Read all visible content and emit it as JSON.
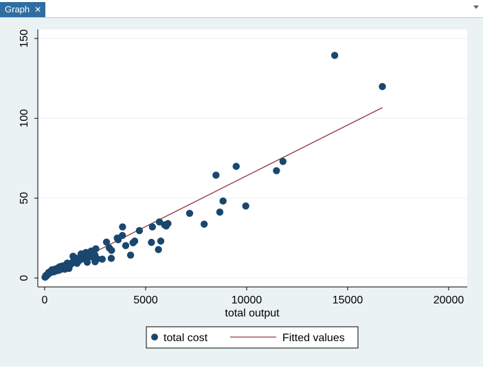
{
  "tab": {
    "label": "Graph",
    "close": "✕"
  },
  "chart_data": {
    "type": "scatter",
    "xlabel": "total output",
    "ylabel": "",
    "xlim": [
      0,
      20000
    ],
    "ylim": [
      0,
      150
    ],
    "xticks": [
      0,
      5000,
      10000,
      15000,
      20000
    ],
    "yticks": [
      0,
      50,
      100,
      150
    ],
    "grid": true,
    "legend_position": "bottom",
    "colors": {
      "points": "#1a476f",
      "fit": "#90353b",
      "plot_bg": "#ffffff",
      "outer_bg": "#eaf2f3",
      "grid": "#eaf2f3"
    },
    "series": [
      {
        "name": "total cost",
        "kind": "scatter",
        "points": [
          [
            14359,
            139.4
          ],
          [
            16719,
            119.9
          ],
          [
            11796,
            73.0
          ],
          [
            11477,
            67.2
          ],
          [
            9482,
            69.9
          ],
          [
            8482,
            64.4
          ],
          [
            8832,
            48.2
          ],
          [
            9956,
            45.1
          ],
          [
            8672,
            41.3
          ],
          [
            7176,
            40.5
          ],
          [
            7896,
            33.7
          ],
          [
            6103,
            34.1
          ],
          [
            5935,
            33.3
          ],
          [
            5682,
            35.1
          ],
          [
            6017,
            32.6
          ],
          [
            5334,
            32.0
          ],
          [
            5749,
            23.1
          ],
          [
            5633,
            17.8
          ],
          [
            5285,
            22.3
          ],
          [
            4690,
            29.7
          ],
          [
            4457,
            23.1
          ],
          [
            4376,
            22.1
          ],
          [
            4012,
            20.3
          ],
          [
            4254,
            14.3
          ],
          [
            3856,
            32.0
          ],
          [
            3847,
            26.6
          ],
          [
            3594,
            25.0
          ],
          [
            3640,
            24.0
          ],
          [
            3310,
            17.3
          ],
          [
            3198,
            18.9
          ],
          [
            3062,
            22.5
          ],
          [
            3297,
            12.3
          ],
          [
            2849,
            11.8
          ],
          [
            2600,
            12.0
          ],
          [
            2534,
            18.3
          ],
          [
            2491,
            14.3
          ],
          [
            2497,
            10.2
          ],
          [
            2397,
            12.9
          ],
          [
            2303,
            16.9
          ],
          [
            2200,
            13.4
          ],
          [
            2107,
            9.9
          ],
          [
            2043,
            16.0
          ],
          [
            1988,
            14.0
          ],
          [
            1870,
            12.0
          ],
          [
            1806,
            15.1
          ],
          [
            1700,
            10.8
          ],
          [
            1602,
            9.2
          ],
          [
            1553,
            12.4
          ],
          [
            1406,
            13.6
          ],
          [
            1389,
            10.1
          ],
          [
            1300,
            8.6
          ],
          [
            1203,
            6.0
          ],
          [
            1120,
            9.3
          ],
          [
            1057,
            8.0
          ],
          [
            1000,
            5.5
          ],
          [
            944,
            7.3
          ],
          [
            895,
            7.6
          ],
          [
            842,
            6.1
          ],
          [
            792,
            5.4
          ],
          [
            755,
            7.1
          ],
          [
            700,
            4.8
          ],
          [
            655,
            6.3
          ],
          [
            606,
            5.2
          ],
          [
            555,
            4.4
          ],
          [
            503,
            5.5
          ],
          [
            452,
            3.9
          ],
          [
            404,
            4.9
          ],
          [
            357,
            5.1
          ],
          [
            303,
            4.2
          ],
          [
            258,
            3.1
          ],
          [
            203,
            3.5
          ],
          [
            178,
            2.6
          ],
          [
            148,
            2.1
          ],
          [
            103,
            1.9
          ],
          [
            82,
            1.2
          ],
          [
            60,
            1.6
          ],
          [
            40,
            0.8
          ],
          [
            20,
            0.5
          ]
        ]
      },
      {
        "name": "Fitted values",
        "kind": "line",
        "x": [
          2,
          16719
        ],
        "y": [
          0.5,
          106.7
        ]
      }
    ]
  }
}
